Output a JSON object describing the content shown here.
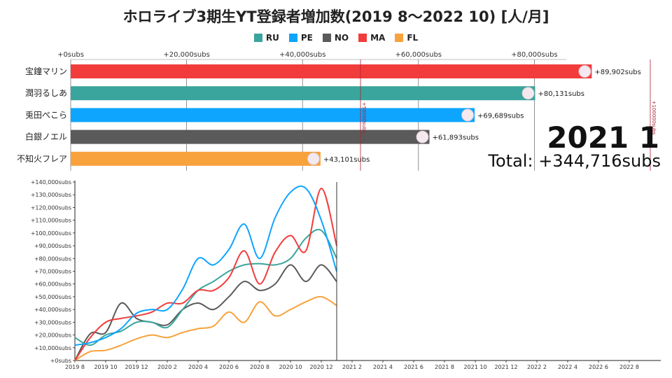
{
  "title": "ホロライブ3期生YT登録者増加数(2019 8～2022 10) [人/月]",
  "legend": [
    {
      "code": "RU",
      "color": "#3aa59d"
    },
    {
      "code": "PE",
      "color": "#0ea5ff"
    },
    {
      "code": "NO",
      "color": "#5a5a5a"
    },
    {
      "code": "MA",
      "color": "#f23c3c"
    },
    {
      "code": "FL",
      "color": "#f7a23c"
    }
  ],
  "current_period": "2021 1",
  "total_label": "Total: +344,716subs",
  "chart_data": [
    {
      "type": "bar",
      "orientation": "horizontal",
      "categories": [
        "宝鐘マリン",
        "潤羽るしあ",
        "兎田ぺこら",
        "白銀ノエル",
        "不知火フレア"
      ],
      "codes": [
        "MA",
        "RU",
        "PE",
        "NO",
        "FL"
      ],
      "values": [
        89902,
        80131,
        69689,
        61893,
        43101
      ],
      "value_labels": [
        "+89,902subs",
        "+80,131subs",
        "+69,689subs",
        "+61,893subs",
        "+43,101subs"
      ],
      "xlim": [
        0,
        100000
      ],
      "x_tick_values": [
        0,
        20000,
        40000,
        60000,
        80000
      ],
      "x_tick_labels": [
        "+0subs",
        "+20,000subs",
        "+40,000subs",
        "+60,000subs",
        "+80,000subs"
      ],
      "reference_lines": [
        {
          "value": 50000,
          "label": "+50000subs"
        },
        {
          "value": 100000,
          "label": "+100000subs"
        }
      ]
    },
    {
      "type": "line",
      "x_tick_labels": [
        "2019 8",
        "2019 10",
        "2019 12",
        "2020 2",
        "2020 4",
        "2020 6",
        "2020 8",
        "2020 10",
        "2020 12",
        "2021 2",
        "2021 4",
        "2021 6",
        "2021 8",
        "2021 10",
        "2021 12",
        "2022 2",
        "2022 4",
        "2022 6",
        "2022 8"
      ],
      "y_tick_labels": [
        "+0subs",
        "+10,000subs",
        "+20,000subs",
        "+30,000subs",
        "+40,000subs",
        "+50,000subs",
        "+60,000subs",
        "+70,000subs",
        "+80,000subs",
        "+90,000subs",
        "+100,000subs",
        "+110,000subs",
        "+120,000subs",
        "+130,000subs",
        "+140,000subs"
      ],
      "ylim": [
        0,
        140000
      ],
      "x": [
        "2019 8",
        "2019 9",
        "2019 10",
        "2019 11",
        "2019 12",
        "2020 1",
        "2020 2",
        "2020 3",
        "2020 4",
        "2020 5",
        "2020 6",
        "2020 7",
        "2020 8",
        "2020 9",
        "2020 10",
        "2020 11",
        "2020 12",
        "2021 1"
      ],
      "series": [
        {
          "code": "RU",
          "values": [
            18000,
            12000,
            20000,
            23000,
            30000,
            30000,
            26000,
            40000,
            55000,
            62000,
            70000,
            75000,
            76000,
            75000,
            80000,
            96000,
            102000,
            80131
          ]
        },
        {
          "code": "PE",
          "values": [
            12000,
            14000,
            18000,
            25000,
            37000,
            40000,
            40000,
            56000,
            80000,
            75000,
            87000,
            107000,
            80000,
            112000,
            132000,
            135000,
            110000,
            69689
          ]
        },
        {
          "code": "NO",
          "values": [
            0,
            21000,
            22000,
            45000,
            33000,
            30000,
            28000,
            40000,
            45000,
            40000,
            50000,
            62000,
            55000,
            60000,
            75000,
            62000,
            75000,
            61893
          ]
        },
        {
          "code": "MA",
          "values": [
            0,
            18000,
            30000,
            33000,
            35000,
            38000,
            45000,
            45000,
            55000,
            55000,
            65000,
            86000,
            60000,
            85000,
            98000,
            86000,
            135000,
            89902
          ]
        },
        {
          "code": "FL",
          "values": [
            0,
            7000,
            8000,
            12000,
            17000,
            20000,
            18000,
            22000,
            25000,
            27000,
            38000,
            30000,
            46000,
            35000,
            40000,
            46000,
            50000,
            43101
          ]
        }
      ],
      "marker_at": "2021 1"
    }
  ]
}
